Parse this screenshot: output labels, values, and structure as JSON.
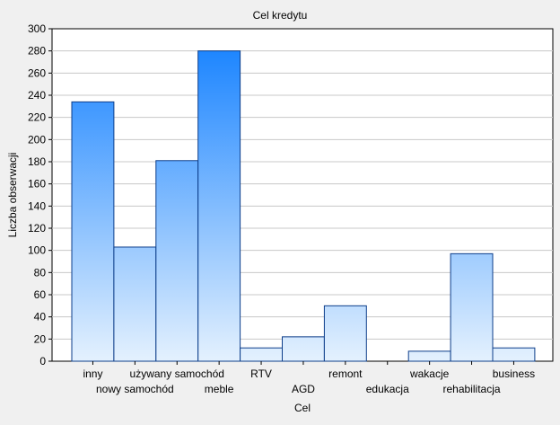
{
  "chart_data": {
    "type": "bar",
    "title": "Cel kredytu",
    "xlabel": "Cel",
    "ylabel": "Liczba obserwacji",
    "categories": [
      "inny",
      "nowy samochód",
      "używany samochód",
      "meble",
      "RTV",
      "AGD",
      "remont",
      "edukacja",
      "wakacje",
      "rehabilitacja",
      "business"
    ],
    "values": [
      234,
      103,
      181,
      280,
      12,
      22,
      50,
      0,
      9,
      97,
      12
    ],
    "ylim": [
      0,
      300
    ],
    "yticks": [
      0,
      20,
      40,
      60,
      80,
      100,
      120,
      140,
      160,
      180,
      200,
      220,
      240,
      260,
      280,
      300
    ],
    "grid": true,
    "legend": "none",
    "colors": {
      "bar_top": "#1e86ff",
      "bar_bottom": "#e4f1fe",
      "bar_edge": "#0d3e8a",
      "plot_bg": "#ffffff",
      "page_bg": "#f0f0f0",
      "grid": "#c8c8c8"
    }
  }
}
